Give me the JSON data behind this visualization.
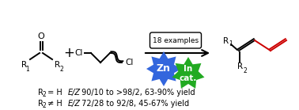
{
  "bg_color": "#ffffff",
  "bond_color_black": "#000000",
  "bond_color_red": "#cc0000",
  "zn_color": "#3366dd",
  "in_color": "#22aa22",
  "zn_text": "Zn",
  "in_text": "In\ncat.",
  "examples_text": "18 examples",
  "figw": 3.78,
  "figh": 1.39,
  "dpi": 100,
  "xlim": [
    0,
    378
  ],
  "ylim": [
    0,
    139
  ]
}
